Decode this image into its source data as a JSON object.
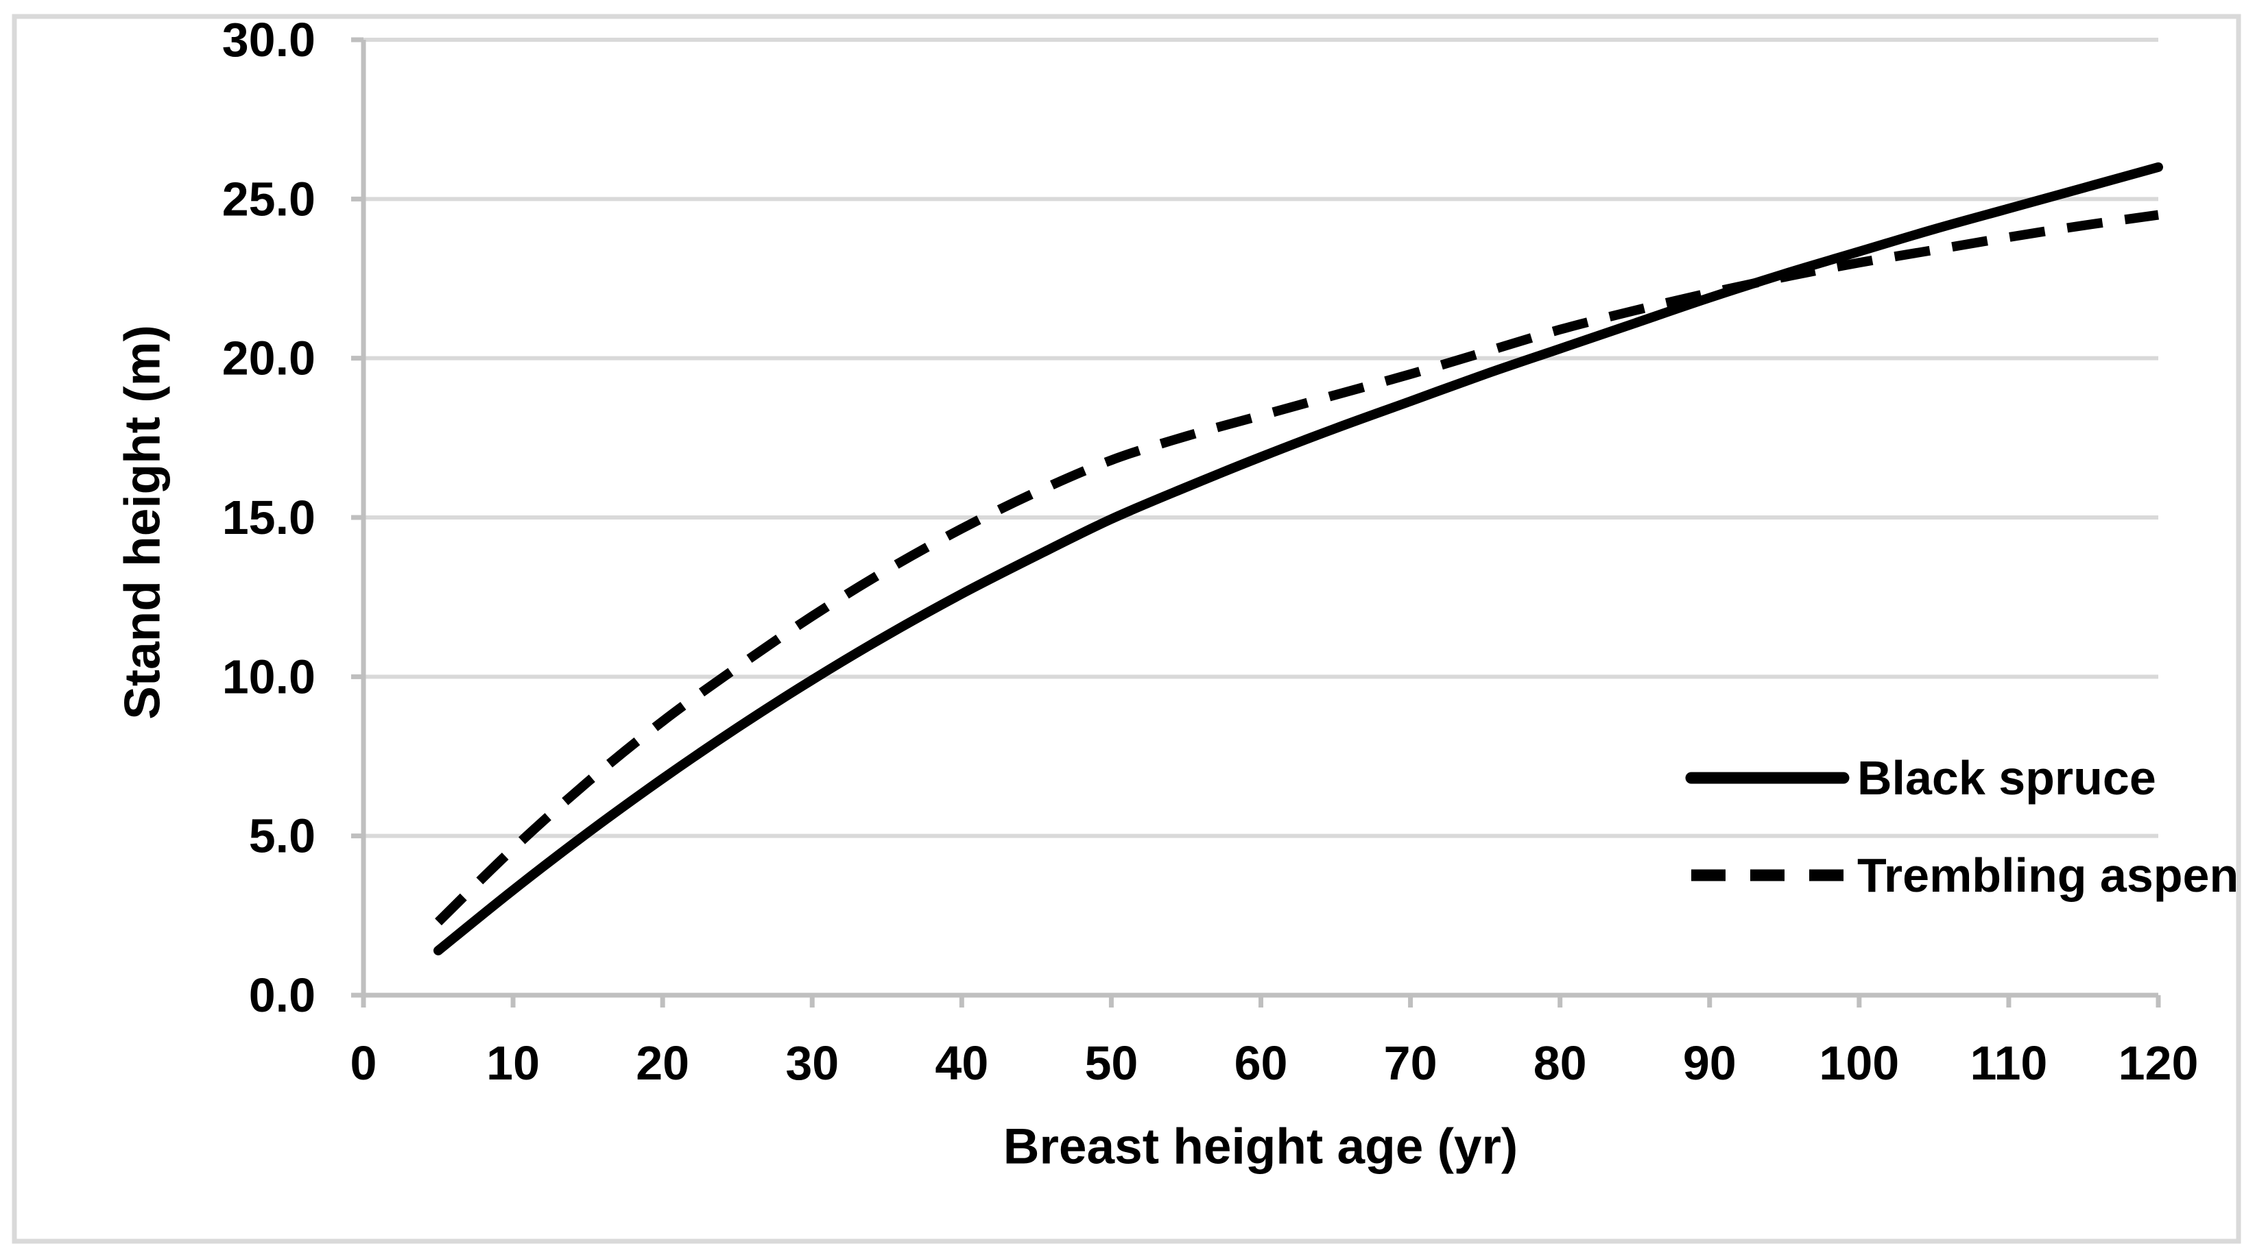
{
  "figure": {
    "background_color": "#ffffff",
    "border_color": "#d9d9d9"
  },
  "chart_data": {
    "type": "line",
    "title": "",
    "xlabel": "Breast height age (yr)",
    "ylabel": "Stand height (m)",
    "xlim": [
      0,
      120
    ],
    "ylim": [
      0,
      30
    ],
    "grid": "horizontal-only",
    "grid_color": "#d9d9d9",
    "axis_color": "#bfbfbf",
    "line_color": "#000000",
    "x_ticks": {
      "values": [
        0,
        10,
        20,
        30,
        40,
        50,
        60,
        70,
        80,
        90,
        100,
        110,
        120
      ],
      "labels": [
        "0",
        "10",
        "20",
        "30",
        "40",
        "50",
        "60",
        "70",
        "80",
        "90",
        "100",
        "110",
        "120"
      ]
    },
    "y_ticks": {
      "values": [
        0,
        5,
        10,
        15,
        20,
        25,
        30
      ],
      "labels": [
        "0.0",
        "5.0",
        "10.0",
        "15.0",
        "20.0",
        "25.0",
        "30.0"
      ]
    },
    "legend": {
      "position": "inside-right",
      "entries": [
        "Black spruce",
        "Trembling aspen"
      ]
    },
    "series": [
      {
        "name": "Black spruce",
        "style": "solid",
        "color": "#000000",
        "x": [
          5,
          10,
          15,
          20,
          25,
          30,
          35,
          40,
          45,
          50,
          55,
          60,
          65,
          70,
          75,
          80,
          85,
          90,
          95,
          100,
          105,
          110,
          115,
          120
        ],
        "y": [
          1.4,
          3.3,
          5.1,
          6.8,
          8.4,
          9.9,
          11.3,
          12.6,
          13.8,
          14.95,
          15.95,
          16.9,
          17.8,
          18.65,
          19.5,
          20.3,
          21.1,
          21.9,
          22.65,
          23.35,
          24.05,
          24.7,
          25.35,
          26.0
        ]
      },
      {
        "name": "Trembling aspen",
        "style": "dashed",
        "color": "#000000",
        "x": [
          5,
          10,
          15,
          20,
          25,
          30,
          35,
          40,
          45,
          50,
          55,
          60,
          65,
          70,
          75,
          80,
          85,
          90,
          95,
          100,
          105,
          110,
          115,
          120
        ],
        "y": [
          2.3,
          4.6,
          6.7,
          8.6,
          10.3,
          11.9,
          13.35,
          14.65,
          15.8,
          16.8,
          17.55,
          18.2,
          18.85,
          19.5,
          20.2,
          20.9,
          21.5,
          22.05,
          22.55,
          23.0,
          23.4,
          23.8,
          24.17,
          24.5
        ]
      }
    ]
  }
}
